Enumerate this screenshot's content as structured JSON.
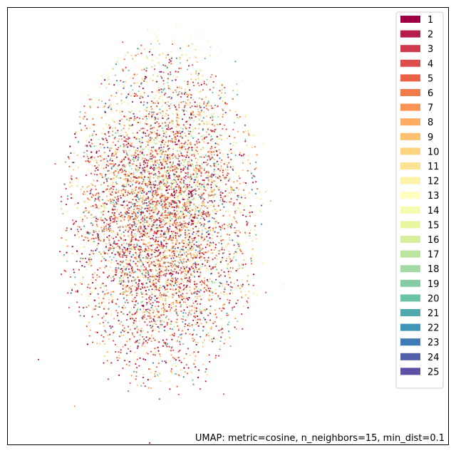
{
  "chart_data": {
    "type": "scatter",
    "title": "",
    "xlabel": "",
    "ylabel": "",
    "axes_visible": false,
    "grid": false,
    "legend_placement": "top-right",
    "annotation": "UMAP: metric=cosine, n_neighbors=15, min_dist=0.1",
    "series": [
      {
        "label": "1",
        "color": "#9e0142"
      },
      {
        "label": "2",
        "color": "#b71c4a"
      },
      {
        "label": "3",
        "color": "#cd3a4c"
      },
      {
        "label": "4",
        "color": "#dd4d4b"
      },
      {
        "label": "5",
        "color": "#ea6048"
      },
      {
        "label": "6",
        "color": "#f37a4a"
      },
      {
        "label": "7",
        "color": "#f99356"
      },
      {
        "label": "8",
        "color": "#fcac63"
      },
      {
        "label": "9",
        "color": "#fdc070"
      },
      {
        "label": "10",
        "color": "#fed480"
      },
      {
        "label": "11",
        "color": "#fee391"
      },
      {
        "label": "12",
        "color": "#fff1a8"
      },
      {
        "label": "13",
        "color": "#ffffbf"
      },
      {
        "label": "14",
        "color": "#f6fbb3"
      },
      {
        "label": "15",
        "color": "#e9f6a1"
      },
      {
        "label": "16",
        "color": "#d6ee9b"
      },
      {
        "label": "17",
        "color": "#bde5a0"
      },
      {
        "label": "18",
        "color": "#a2d9a4"
      },
      {
        "label": "19",
        "color": "#85cca5"
      },
      {
        "label": "20",
        "color": "#6cc3a5"
      },
      {
        "label": "21",
        "color": "#4fa9af"
      },
      {
        "label": "22",
        "color": "#3e96b7"
      },
      {
        "label": "23",
        "color": "#3f7ab5"
      },
      {
        "label": "24",
        "color": "#535fa8"
      },
      {
        "label": "25",
        "color": "#5e4fa2"
      }
    ]
  }
}
